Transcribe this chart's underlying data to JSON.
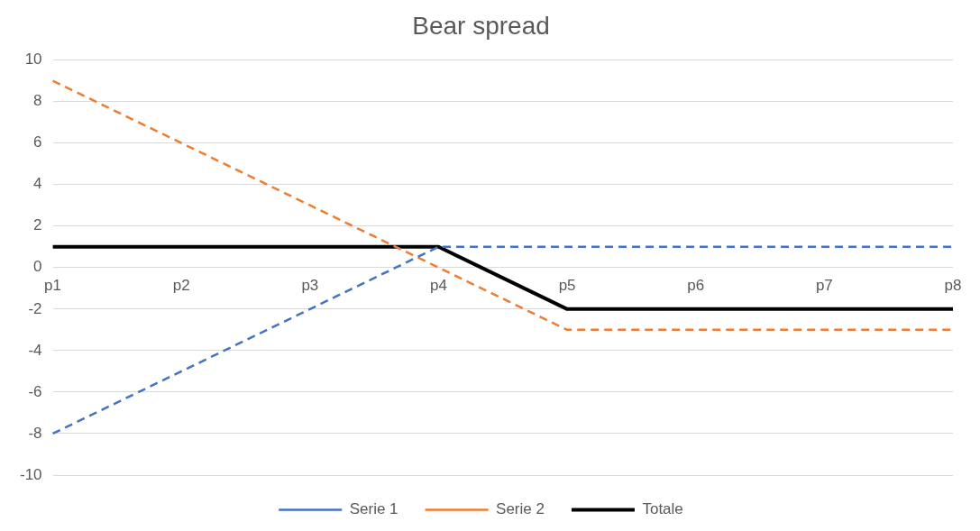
{
  "chart_data": {
    "type": "line",
    "title": "Bear spread",
    "categories": [
      "p1",
      "p2",
      "p3",
      "p4",
      "p5",
      "p6",
      "p7",
      "p8"
    ],
    "series": [
      {
        "name": "Serie 1",
        "color": "#4472c4",
        "line_style": "dashed",
        "values": [
          -8,
          -5,
          -2,
          1,
          1,
          1,
          1,
          1
        ]
      },
      {
        "name": "Serie 2",
        "color": "#ed7d31",
        "line_style": "dashed",
        "values": [
          9,
          6,
          3,
          0,
          -3,
          -3,
          -3,
          -3
        ]
      },
      {
        "name": "Totale",
        "color": "#000000",
        "line_style": "solid",
        "values": [
          1,
          1,
          1,
          1,
          -2,
          -2,
          -2,
          -2
        ]
      }
    ],
    "ylim": [
      -10,
      10
    ],
    "yticks": [
      -10,
      -8,
      -6,
      -4,
      -2,
      0,
      2,
      4,
      6,
      8,
      10
    ],
    "grid": "y",
    "legend": "bottom",
    "marker": "none"
  }
}
